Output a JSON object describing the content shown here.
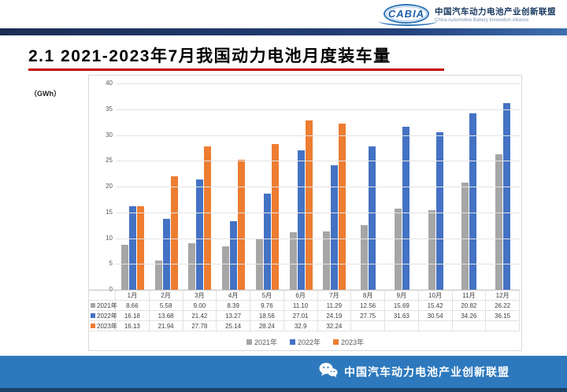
{
  "header": {
    "logo_text": "CABIA",
    "org_cn": "中国汽车动力电池产业创新联盟",
    "org_en": "China Automotive Battery Innovation Alliance"
  },
  "title": "2.1  2021-2023年7月我国动力电池月度装车量",
  "chart_data": {
    "type": "bar",
    "title": "2021-2023年7月我国动力电池月度装车量",
    "unit_label": "（GWh）",
    "xlabel": "",
    "ylabel": "GWh",
    "ylim": [
      0,
      40
    ],
    "ytick_step": 5,
    "grid": true,
    "legend_position": "bottom",
    "categories": [
      "1月",
      "2月",
      "3月",
      "4月",
      "5月",
      "6月",
      "7月",
      "8月",
      "9月",
      "10月",
      "11月",
      "12月"
    ],
    "series": [
      {
        "name": "2021年",
        "color": "#A6A6A6",
        "values": [
          8.66,
          5.58,
          9.0,
          8.39,
          9.76,
          11.1,
          11.29,
          12.56,
          15.69,
          15.42,
          20.82,
          26.22
        ]
      },
      {
        "name": "2022年",
        "color": "#4472C4",
        "values": [
          16.18,
          13.68,
          21.42,
          13.27,
          18.56,
          27.01,
          24.19,
          27.75,
          31.63,
          30.54,
          34.26,
          36.15
        ]
      },
      {
        "name": "2023年",
        "color": "#ED7D31",
        "values": [
          16.13,
          21.94,
          27.78,
          25.14,
          28.24,
          32.9,
          32.24,
          null,
          null,
          null,
          null,
          null
        ]
      }
    ]
  },
  "table": {
    "display_values": [
      [
        "8.66",
        "5.58",
        "9.00",
        "8.39",
        "9.76",
        "11.10",
        "11.29",
        "12.56",
        "15.69",
        "15.42",
        "20.82",
        "26.22"
      ],
      [
        "16.18",
        "13.68",
        "21.42",
        "13.27",
        "18.56",
        "27.01",
        "24.19",
        "27.75",
        "31.63",
        "30.54",
        "34.26",
        "36.15"
      ],
      [
        "16.13",
        "21.94",
        "27.78",
        "25.14",
        "28.24",
        "32.9",
        "32.24",
        "",
        "",
        "",
        "",
        ""
      ]
    ]
  },
  "footer": {
    "text": "中国汽车动力电池产业创新联盟"
  }
}
